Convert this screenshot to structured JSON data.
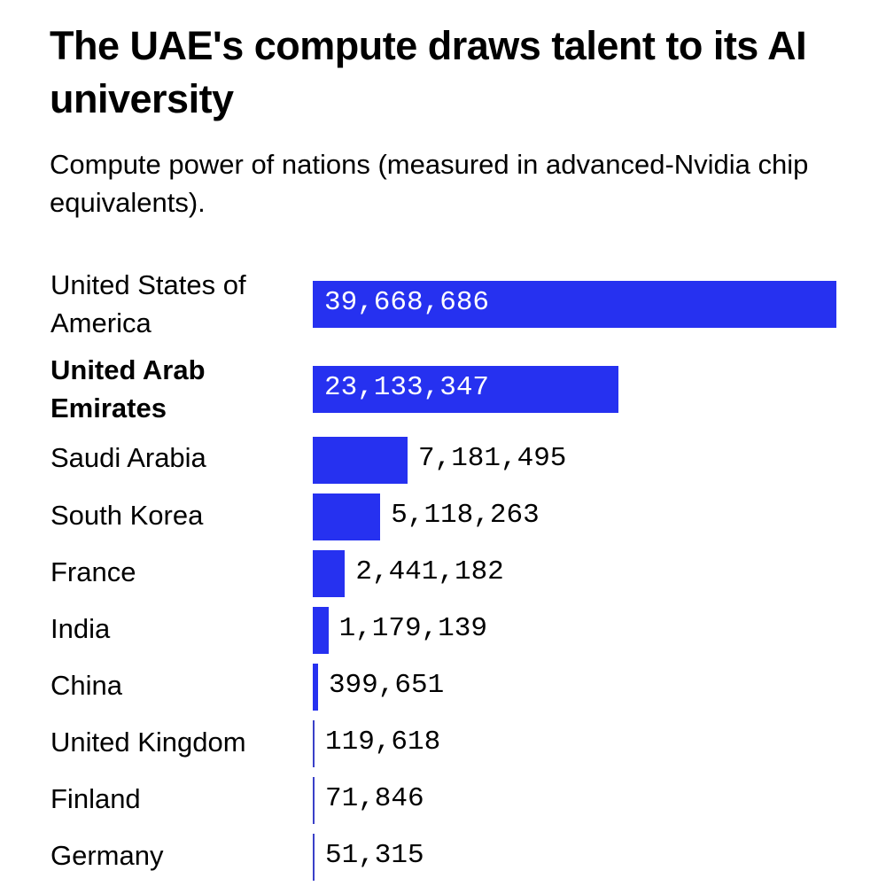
{
  "header": {
    "title": "The UAE's compute draws talent to its AI university",
    "subtitle": "Compute power of nations (measured in advanced-Nvidia chip equivalents)."
  },
  "colors": {
    "bar": "#2631f0",
    "text": "#000000",
    "background": "#ffffff"
  },
  "chart_data": {
    "type": "bar",
    "orientation": "horizontal",
    "title": "The UAE's compute draws talent to its AI university",
    "subtitle": "Compute power of nations (measured in advanced-Nvidia chip equivalents).",
    "categories": [
      "United States of America",
      "United Arab Emirates",
      "Saudi Arabia",
      "South Korea",
      "France",
      "India",
      "China",
      "United Kingdom",
      "Finland",
      "Germany"
    ],
    "values": [
      39668686,
      23133347,
      7181495,
      5118263,
      2441182,
      1179139,
      399651,
      119618,
      71846,
      51315
    ],
    "value_labels": [
      "39,668,686",
      "23,133,347",
      "7,181,495",
      "5,118,263",
      "2,441,182",
      "1,179,139",
      "399,651",
      "119,618",
      "71,846",
      "51,315"
    ],
    "highlighted": "United Arab Emirates",
    "xlabel": "",
    "ylabel": "",
    "grid": false,
    "legend": false
  },
  "rows": [
    {
      "label": "United States of America",
      "value": "39,668,686"
    },
    {
      "label": "United Arab Emirates",
      "value": "23,133,347"
    },
    {
      "label": "Saudi Arabia",
      "value": "7,181,495"
    },
    {
      "label": "South Korea",
      "value": "5,118,263"
    },
    {
      "label": "France",
      "value": "2,441,182"
    },
    {
      "label": "India",
      "value": "1,179,139"
    },
    {
      "label": "China",
      "value": "399,651"
    },
    {
      "label": "United Kingdom",
      "value": "119,618"
    },
    {
      "label": "Finland",
      "value": "71,846"
    },
    {
      "label": "Germany",
      "value": "51,315"
    }
  ]
}
